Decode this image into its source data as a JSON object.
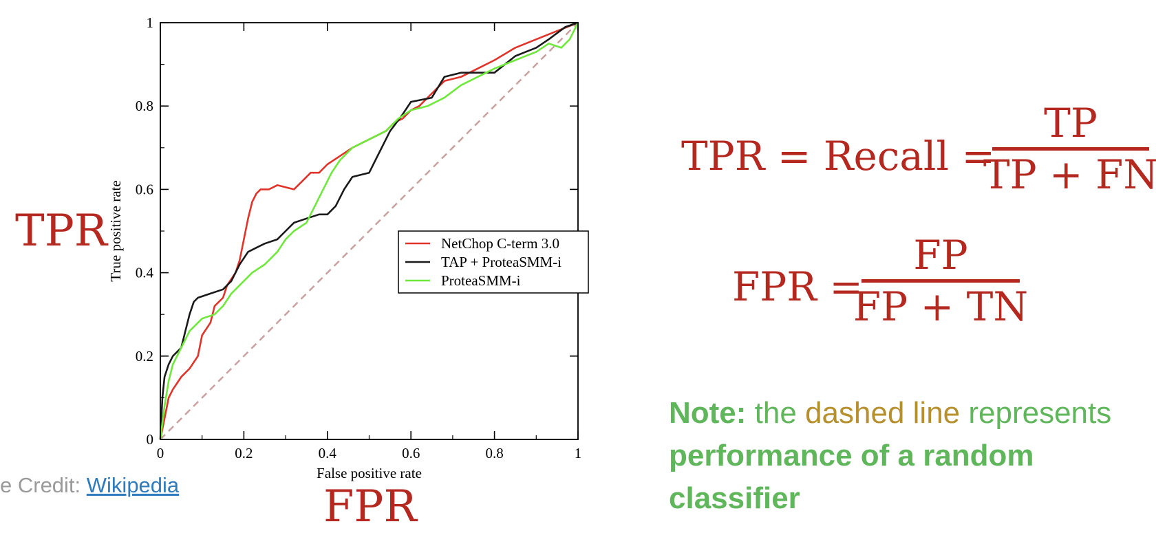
{
  "labels": {
    "tpr_side": "TPR",
    "fpr_bottom": "FPR"
  },
  "formulas": {
    "tpr": {
      "lhs": "TPR = Recall =",
      "numerator": "TP",
      "denominator": "TP + FN"
    },
    "fpr": {
      "lhs": "FPR =",
      "numerator": "FP",
      "denominator": "FP + TN"
    }
  },
  "credit": {
    "prefix": "e Credit: ",
    "link_text": "Wikipedia"
  },
  "note": {
    "label": "Note:",
    "text1": " the ",
    "highlight": "dashed line",
    "text2": " represents ",
    "bold_text": "performance of a random classifier"
  },
  "colors": {
    "accent_red": "#b5281f",
    "note_green": "#5fb65b",
    "note_gold": "#b7902e",
    "link_blue": "#2e7bbd"
  },
  "chart_data": {
    "type": "line",
    "title": "",
    "xlabel": "False positive rate",
    "ylabel": "True positive rate",
    "xlim": [
      0,
      1
    ],
    "ylim": [
      0,
      1
    ],
    "xticks": [
      "0",
      "0.2",
      "0.4",
      "0.6",
      "0.8",
      "1"
    ],
    "yticks": [
      "0",
      "0.2",
      "0.4",
      "0.6",
      "0.8",
      "1"
    ],
    "grid": false,
    "legend_position": "center-right",
    "reference_line": {
      "style": "dashed",
      "color": "#c9a19f",
      "from": [
        0,
        0
      ],
      "to": [
        1,
        1
      ]
    },
    "series": [
      {
        "name": "NetChop C-term 3.0",
        "color": "#e0342a",
        "x": [
          0,
          0.01,
          0.02,
          0.03,
          0.05,
          0.07,
          0.09,
          0.1,
          0.12,
          0.13,
          0.15,
          0.16,
          0.18,
          0.19,
          0.2,
          0.21,
          0.22,
          0.23,
          0.24,
          0.26,
          0.28,
          0.32,
          0.34,
          0.36,
          0.38,
          0.4,
          0.43,
          0.46,
          0.5,
          0.54,
          0.56,
          0.58,
          0.6,
          0.62,
          0.65,
          0.68,
          0.72,
          0.76,
          0.8,
          0.85,
          0.9,
          0.95,
          1.0
        ],
        "y": [
          0,
          0.05,
          0.1,
          0.12,
          0.15,
          0.17,
          0.2,
          0.25,
          0.28,
          0.32,
          0.34,
          0.37,
          0.4,
          0.43,
          0.48,
          0.53,
          0.57,
          0.59,
          0.6,
          0.6,
          0.61,
          0.6,
          0.62,
          0.64,
          0.64,
          0.66,
          0.68,
          0.7,
          0.72,
          0.74,
          0.76,
          0.77,
          0.79,
          0.8,
          0.83,
          0.86,
          0.87,
          0.89,
          0.91,
          0.94,
          0.96,
          0.98,
          1.0
        ]
      },
      {
        "name": "TAP + ProteaSMM-i",
        "color": "#1a1a1a",
        "x": [
          0,
          0.005,
          0.01,
          0.02,
          0.03,
          0.05,
          0.06,
          0.07,
          0.08,
          0.09,
          0.12,
          0.15,
          0.17,
          0.19,
          0.21,
          0.23,
          0.25,
          0.28,
          0.3,
          0.32,
          0.35,
          0.38,
          0.4,
          0.42,
          0.44,
          0.46,
          0.5,
          0.52,
          0.55,
          0.58,
          0.6,
          0.65,
          0.68,
          0.72,
          0.8,
          0.85,
          0.9,
          0.93,
          0.97,
          1.0
        ],
        "y": [
          0,
          0.1,
          0.15,
          0.18,
          0.2,
          0.22,
          0.26,
          0.3,
          0.33,
          0.34,
          0.35,
          0.36,
          0.38,
          0.42,
          0.45,
          0.46,
          0.47,
          0.48,
          0.5,
          0.52,
          0.53,
          0.54,
          0.54,
          0.56,
          0.6,
          0.63,
          0.64,
          0.68,
          0.74,
          0.78,
          0.81,
          0.82,
          0.87,
          0.88,
          0.88,
          0.92,
          0.94,
          0.96,
          0.99,
          1.0
        ]
      },
      {
        "name": "ProteaSMM-i",
        "color": "#6fe83c",
        "x": [
          0,
          0.01,
          0.02,
          0.03,
          0.05,
          0.07,
          0.1,
          0.13,
          0.15,
          0.17,
          0.2,
          0.22,
          0.25,
          0.28,
          0.3,
          0.32,
          0.35,
          0.37,
          0.39,
          0.41,
          0.43,
          0.46,
          0.5,
          0.54,
          0.57,
          0.6,
          0.64,
          0.68,
          0.72,
          0.76,
          0.8,
          0.85,
          0.9,
          0.93,
          0.96,
          0.98,
          1.0
        ],
        "y": [
          0,
          0.08,
          0.14,
          0.18,
          0.22,
          0.26,
          0.29,
          0.3,
          0.32,
          0.35,
          0.38,
          0.4,
          0.42,
          0.45,
          0.48,
          0.5,
          0.52,
          0.56,
          0.6,
          0.64,
          0.67,
          0.7,
          0.72,
          0.74,
          0.77,
          0.79,
          0.8,
          0.82,
          0.85,
          0.87,
          0.89,
          0.91,
          0.93,
          0.95,
          0.94,
          0.96,
          1.0
        ]
      }
    ]
  }
}
